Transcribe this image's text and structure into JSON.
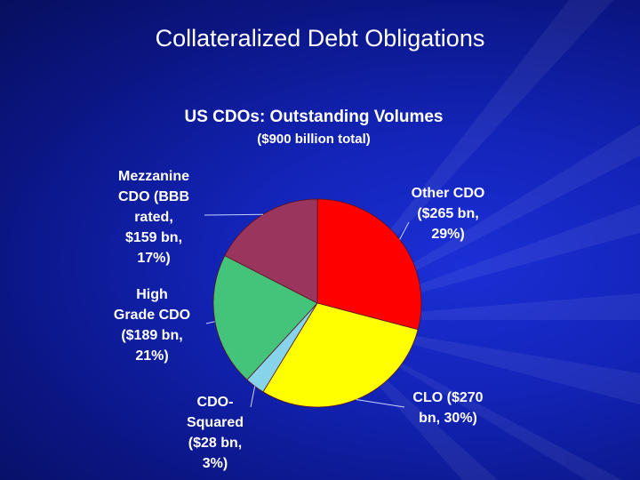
{
  "slide": {
    "title": "Collateralized Debt Obligations"
  },
  "colors": {
    "background": "#1324b8",
    "text": "#ffffff",
    "leader_line": "#c8d2ff"
  },
  "chart_data": {
    "type": "pie",
    "title": "US CDOs:  Outstanding Volumes",
    "subtitle": "($900 billion total)",
    "total": 900,
    "units": "$ bn",
    "slices": [
      {
        "name": "Other CDO",
        "value": 265,
        "percent": 29,
        "color": "#ff0000",
        "label": "Other CDO\n($265 bn,\n29%)"
      },
      {
        "name": "CLO",
        "value": 270,
        "percent": 30,
        "color": "#ffff00",
        "label": "CLO ($270\nbn, 30%)"
      },
      {
        "name": "CDO-Squared",
        "value": 28,
        "percent": 3,
        "color": "#87d4ea",
        "label": "CDO-\nSquared\n($28 bn,\n3%)"
      },
      {
        "name": "High Grade CDO",
        "value": 189,
        "percent": 21,
        "color": "#44c47a",
        "label": "High\nGrade CDO\n($189 bn,\n21%)"
      },
      {
        "name": "Mezzanine CDO (BBB rated)",
        "value": 159,
        "percent": 17,
        "color": "#9a355e",
        "label": "Mezzanine\nCDO (BBB\nrated,\n$159 bn,\n17%)"
      }
    ]
  }
}
